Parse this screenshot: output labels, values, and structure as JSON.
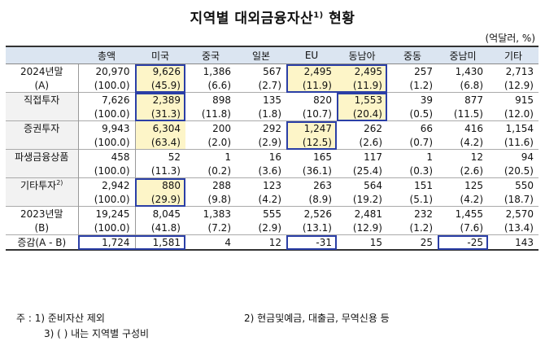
{
  "title": {
    "main": "지역별 대외금융자산",
    "sup": "1)",
    "tail": "현황"
  },
  "unit": "(억달러, %)",
  "columns": [
    "",
    "총액",
    "미국",
    "중국",
    "일본",
    "EU",
    "동남아",
    "중동",
    "중남미",
    "기타"
  ],
  "rows": [
    {
      "label1": "2024년말",
      "label2": "(A)",
      "values": [
        "20,970",
        "9,626",
        "1,386",
        "567",
        "2,495",
        "2,495",
        "257",
        "1,430",
        "2,713"
      ],
      "shares": [
        "(100.0)",
        "(45.9)",
        "(6.6)",
        "(2.7)",
        "(11.9)",
        "(11.9)",
        "(1.2)",
        "(6.8)",
        "(12.9)"
      ]
    },
    {
      "label1": "직접투자",
      "values": [
        "7,626",
        "2,389",
        "898",
        "135",
        "820",
        "1,553",
        "39",
        "877",
        "915"
      ],
      "shares": [
        "(100.0)",
        "(31.3)",
        "(11.8)",
        "(1.8)",
        "(10.7)",
        "(20.4)",
        "(0.5)",
        "(11.5)",
        "(12.0)"
      ]
    },
    {
      "label1": "증권투자",
      "values": [
        "9,943",
        "6,304",
        "200",
        "292",
        "1,247",
        "262",
        "66",
        "416",
        "1,154"
      ],
      "shares": [
        "(100.0)",
        "(63.4)",
        "(2.0)",
        "(2.9)",
        "(12.5)",
        "(2.6)",
        "(0.7)",
        "(4.2)",
        "(11.6)"
      ]
    },
    {
      "label1": "파생금융상품",
      "values": [
        "458",
        "52",
        "1",
        "16",
        "165",
        "117",
        "1",
        "12",
        "94"
      ],
      "shares": [
        "(100.0)",
        "(11.3)",
        "(0.2)",
        "(3.6)",
        "(36.1)",
        "(25.4)",
        "(0.3)",
        "(2.6)",
        "(20.5)"
      ]
    },
    {
      "label1": "기타투자",
      "sup": "2)",
      "values": [
        "2,942",
        "880",
        "288",
        "123",
        "263",
        "564",
        "151",
        "125",
        "550"
      ],
      "shares": [
        "(100.0)",
        "(29.9)",
        "(9.8)",
        "(4.2)",
        "(8.9)",
        "(19.2)",
        "(5.1)",
        "(4.2)",
        "(18.7)"
      ]
    },
    {
      "label1": "2023년말",
      "label2": "(B)",
      "values": [
        "19,245",
        "8,045",
        "1,383",
        "555",
        "2,526",
        "2,481",
        "232",
        "1,455",
        "2,570"
      ],
      "shares": [
        "(100.0)",
        "(41.8)",
        "(7.2)",
        "(2.9)",
        "(13.1)",
        "(12.9)",
        "(1.2)",
        "(7.6)",
        "(13.4)"
      ]
    },
    {
      "label1": "증감(A - B)",
      "values": [
        "1,724",
        "1,581",
        "4",
        "12",
        "-31",
        "15",
        "25",
        "-25",
        "143"
      ]
    }
  ],
  "notes": {
    "n1": "주 : 1) 준비자산 제외",
    "n2": "2) 현금및예금, 대출금, 무역신용 등",
    "n3": "3) (  ) 내는 지역별 구성비"
  },
  "colors": {
    "header_bg": "#dbe5f1",
    "highlight": "#fdf5c8",
    "box_border": "#2b3fa6"
  }
}
